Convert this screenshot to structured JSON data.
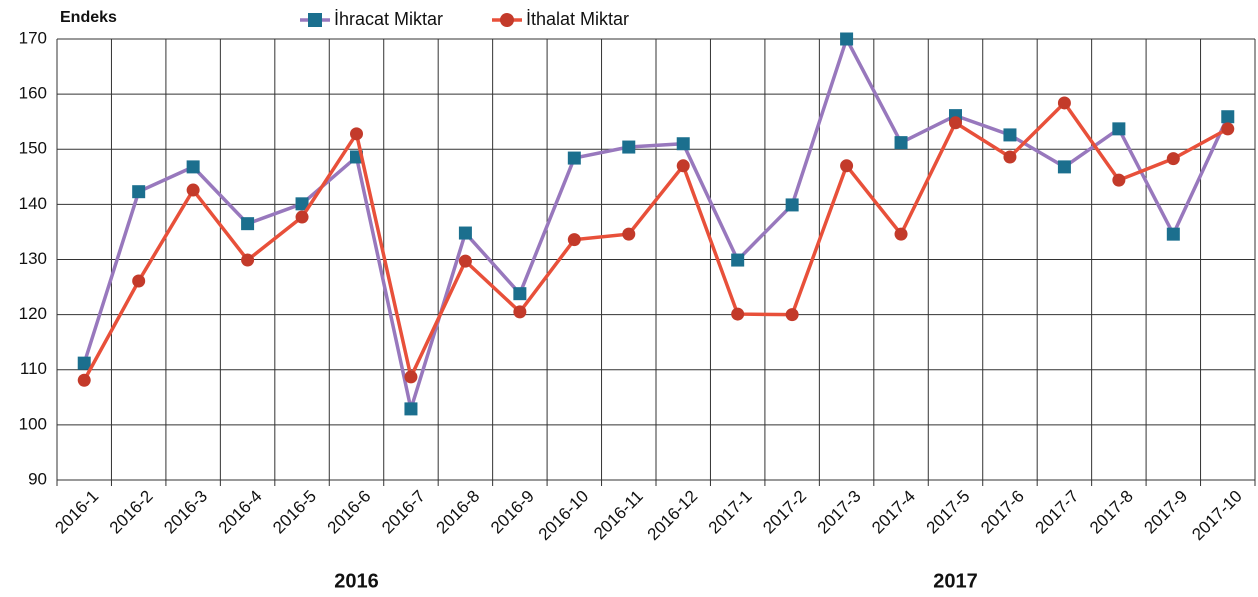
{
  "chart_data": {
    "type": "line",
    "y_label": "Endeks",
    "categories": [
      "2016-1",
      "2016-2",
      "2016-3",
      "2016-4",
      "2016-5",
      "2016-6",
      "2016-7",
      "2016-8",
      "2016-9",
      "2016-10",
      "2016-11",
      "2016-12",
      "2017-1",
      "2017-2",
      "2017-3",
      "2017-4",
      "2017-5",
      "2017-6",
      "2017-7",
      "2017-8",
      "2017-9",
      "2017-10"
    ],
    "group_labels": [
      "2016",
      "2017"
    ],
    "series": [
      {
        "name": "İhracat Miktar",
        "color": "#9878bd",
        "marker": "square",
        "marker_color": "#1b6f8e",
        "values": [
          111.2,
          142.3,
          146.8,
          136.5,
          140.1,
          148.6,
          102.9,
          134.8,
          123.8,
          148.4,
          150.4,
          151.0,
          129.9,
          139.9,
          170.0,
          151.2,
          156.1,
          152.6,
          146.8,
          153.7,
          134.6,
          155.9
        ]
      },
      {
        "name": "İthalat Miktar",
        "color": "#e8503a",
        "marker": "circle",
        "marker_color": "#c33a2a",
        "values": [
          108.1,
          126.1,
          142.6,
          129.9,
          137.7,
          152.8,
          108.7,
          129.7,
          120.5,
          133.6,
          134.6,
          147.0,
          120.1,
          120.0,
          147.0,
          134.6,
          154.8,
          148.6,
          158.4,
          144.4,
          148.3,
          153.7
        ]
      }
    ],
    "ylim": [
      90,
      170
    ],
    "yticks": [
      90,
      100,
      110,
      120,
      130,
      140,
      150,
      160,
      170
    ],
    "grid": true
  }
}
